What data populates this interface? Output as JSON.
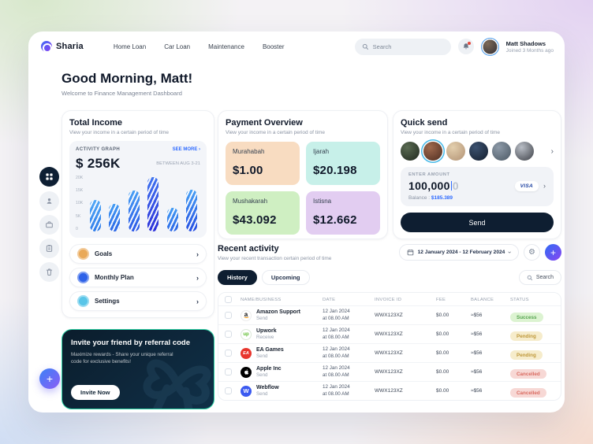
{
  "nav": {
    "brand": "Sharia",
    "items": [
      "Home Loan",
      "Car Loan",
      "Maintenance",
      "Booster"
    ],
    "search_placeholder": "Search",
    "user": {
      "name": "Matt Shadows",
      "joined": "Joined 3 Months ago"
    }
  },
  "greeting": {
    "title": "Good Morning, Matt!",
    "subtitle": "Welcome to Finance Management Dashboard"
  },
  "total_income": {
    "title": "Total Income",
    "subtitle": "View your income in a certain period of time",
    "activity_label": "ACTIVITY GRAPH",
    "see_more": "SEE MORE ›",
    "amount": "$ 256K",
    "period": "BETWEEN AUG 3-21",
    "menu": [
      {
        "label": "Goals",
        "color": "#e9a959"
      },
      {
        "label": "Monthly Plan",
        "color": "#2e62e8"
      },
      {
        "label": "Settings",
        "color": "#59c5e8"
      }
    ]
  },
  "chart_data": {
    "type": "bar",
    "title": "ACTIVITY GRAPH",
    "total_label": "$ 256K",
    "annotation": "BETWEEN AUG 3-21",
    "categories": [
      "",
      "",
      "",
      "",
      "",
      ""
    ],
    "values": [
      12000,
      10500,
      15500,
      20500,
      9000,
      16000
    ],
    "yticks": [
      "20K",
      "15K",
      "10K",
      "5K",
      "0"
    ],
    "ylim": [
      0,
      21000
    ],
    "bar_colors": [
      [
        "#54aaf7",
        "#2e7ae9"
      ],
      [
        "#459ff4",
        "#2a63e5"
      ],
      [
        "#4aa4f5",
        "#2953e6"
      ],
      [
        "#4076f0",
        "#2c2fd8"
      ],
      [
        "#459ff4",
        "#2a63e5"
      ],
      [
        "#4aa4f5",
        "#234ae0"
      ]
    ]
  },
  "payment_overview": {
    "title": "Payment Overview",
    "subtitle": "View your income in a certain period of time",
    "tiles": [
      {
        "label": "Murahabah",
        "amount": "$1.00",
        "bg": "#f8dcc1"
      },
      {
        "label": "Ijarah",
        "amount": "$20.198",
        "bg": "#c7f0e9"
      },
      {
        "label": "Mushakarah",
        "amount": "$43.092",
        "bg": "#cfefc2"
      },
      {
        "label": "Istisna",
        "amount": "$12.662",
        "bg": "#e2cdf1"
      }
    ]
  },
  "quick_send": {
    "title": "Quick send",
    "subtitle": "View your income in a certain period of time",
    "enter_amount_label": "ENTER AMOUNT",
    "amount": "100,000",
    "amount_placeholder": "0",
    "card_brand": "VISA",
    "balance_label": "Balance :",
    "balance_value": "$185.389",
    "send_label": "Send",
    "highlighted_index": 1,
    "avatars": [
      {
        "c1": "#5a6b52",
        "c2": "#20281e"
      },
      {
        "c1": "#a06a4e",
        "c2": "#4e2d20"
      },
      {
        "c1": "#e3cfae",
        "c2": "#b29274"
      },
      {
        "c1": "#3c5270",
        "c2": "#141e2e"
      },
      {
        "c1": "#8d9aa8",
        "c2": "#4b5864"
      },
      {
        "c1": "#b9bec6",
        "c2": "#3c3f46"
      }
    ]
  },
  "invite": {
    "title": "Invite your friend by referral code",
    "subtitle": "Maximize rewards - Share your unique referral code for exclusive benefits!",
    "button": "Invite Now"
  },
  "recent_activity": {
    "title": "Recent activity",
    "subtitle": "View your recent transaction certain period of time",
    "date_range": "12 January 2024 - 12 February 2024",
    "tabs": [
      "History",
      "Upcoming"
    ],
    "active_tab": "History",
    "search_label": "Search",
    "columns": [
      "NAME/BUSINESS",
      "DATE",
      "INVOICE ID",
      "FEE",
      "BALANCE",
      "STATUS"
    ],
    "rows": [
      {
        "logo": "amazon",
        "name": "Amazon Support",
        "type": "Send",
        "date": "12 Jan 2024",
        "time": "at 08.00 AM",
        "invoice": "WWX123XZ",
        "fee": "$0.00",
        "balance": "≈$56",
        "status": "Success"
      },
      {
        "logo": "upwork",
        "name": "Upwork",
        "type": "Receive",
        "date": "12 Jan 2024",
        "time": "at 08.00 AM",
        "invoice": "WWX123XZ",
        "fee": "$0.00",
        "balance": "≈$56",
        "status": "Pending"
      },
      {
        "logo": "ea",
        "name": "EA Games",
        "type": "Send",
        "date": "12 Jan 2024",
        "time": "at 08.00 AM",
        "invoice": "WWX123XZ",
        "fee": "$0.00",
        "balance": "≈$56",
        "status": "Pending"
      },
      {
        "logo": "apple",
        "name": "Apple Inc",
        "type": "Send",
        "date": "12 Jan 2024",
        "time": "at 08.00 AM",
        "invoice": "WWX123XZ",
        "fee": "$0.00",
        "balance": "≈$56",
        "status": "Cancelled"
      },
      {
        "logo": "webflow",
        "name": "Webflow",
        "type": "Send",
        "date": "12 Jan 2024",
        "time": "at 08.00 AM",
        "invoice": "WWX123XZ",
        "fee": "$0.00",
        "balance": "≈$56",
        "status": "Cancelled"
      }
    ],
    "status_styles": {
      "Success": {
        "bg": "#dcf3d1",
        "text": "#56a450"
      },
      "Pending": {
        "bg": "#f6eccb",
        "text": "#bf983a"
      },
      "Cancelled": {
        "bg": "#f7d8d5",
        "text": "#d96b61"
      }
    }
  },
  "colors": {
    "accent_blue": "#2f6bff",
    "dark_navy": "#0e1e31"
  }
}
